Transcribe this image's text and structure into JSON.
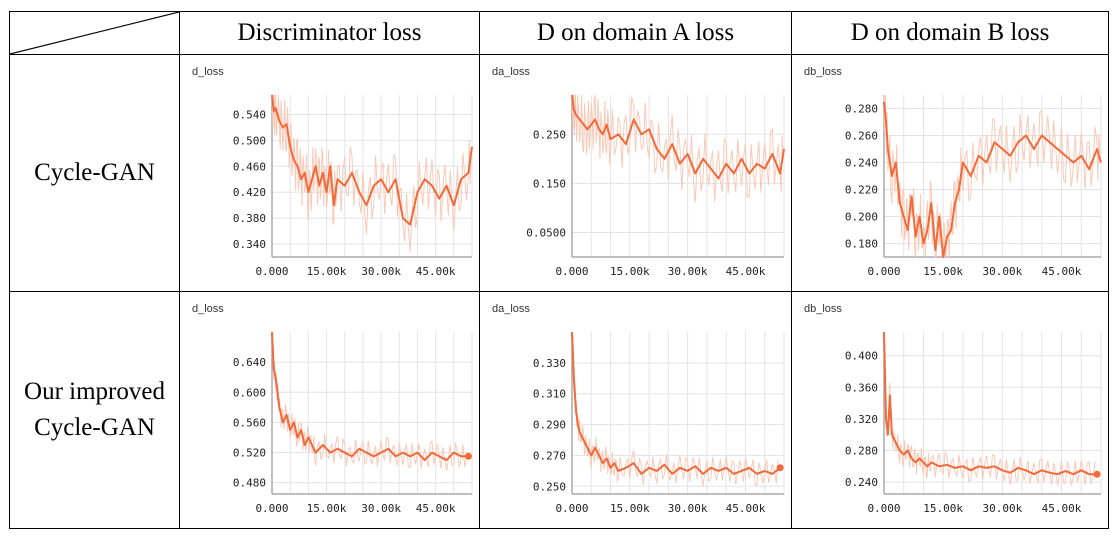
{
  "table": {
    "headers": [
      "Discriminator loss",
      "D on domain A loss",
      "D on domain B loss"
    ],
    "rows": [
      {
        "label_lines": [
          "Cycle-GAN"
        ]
      },
      {
        "label_lines": [
          "Our improved",
          "Cycle-GAN"
        ]
      }
    ]
  },
  "colors": {
    "smoothed": "#f2693a",
    "raw": "#f9c9b6",
    "grid": "#e3e3e3",
    "axis": "#aaaaaa"
  },
  "chart_data": [
    {
      "type": "line",
      "title": "d_loss",
      "x_ticks": [
        "0.000",
        "15.00k",
        "30.00k",
        "45.00k"
      ],
      "y_ticks": [
        "0.540",
        "0.500",
        "0.460",
        "0.420",
        "0.380",
        "0.340"
      ],
      "xlim": [
        0,
        55000
      ],
      "ylim": [
        0.32,
        0.57
      ],
      "grid": true,
      "series": [
        {
          "x": [
            0,
            500,
            1000,
            2000,
            3000,
            4000,
            5000,
            6000,
            7000,
            8000,
            9000,
            10000,
            11000,
            12000,
            13000,
            14000,
            15000,
            16000,
            17000,
            18000,
            20000,
            22000,
            24000,
            26000,
            28000,
            30000,
            32000,
            34000,
            36000,
            38000,
            40000,
            42000,
            44000,
            46000,
            48000,
            50000,
            52000,
            54000,
            55000
          ],
          "y": [
            0.57,
            0.545,
            0.55,
            0.53,
            0.52,
            0.525,
            0.49,
            0.47,
            0.46,
            0.44,
            0.45,
            0.42,
            0.44,
            0.46,
            0.43,
            0.45,
            0.42,
            0.46,
            0.4,
            0.44,
            0.43,
            0.45,
            0.42,
            0.4,
            0.43,
            0.44,
            0.42,
            0.44,
            0.38,
            0.37,
            0.42,
            0.44,
            0.43,
            0.41,
            0.43,
            0.4,
            0.44,
            0.45,
            0.49
          ]
        }
      ]
    },
    {
      "type": "line",
      "title": "da_loss",
      "x_ticks": [
        "0.000",
        "15.00k",
        "30.00k",
        "45.00k"
      ],
      "y_ticks": [
        "0.250",
        "0.150",
        "0.0500"
      ],
      "xlim": [
        0,
        55000
      ],
      "ylim": [
        0.0,
        0.33
      ],
      "grid": true,
      "series": [
        {
          "x": [
            0,
            500,
            1000,
            2000,
            3000,
            4000,
            5000,
            6000,
            7000,
            8000,
            9000,
            10000,
            12000,
            14000,
            16000,
            18000,
            20000,
            22000,
            24000,
            26000,
            28000,
            30000,
            32000,
            34000,
            36000,
            38000,
            40000,
            42000,
            44000,
            46000,
            48000,
            50000,
            52000,
            54000,
            55000
          ],
          "y": [
            0.33,
            0.3,
            0.29,
            0.28,
            0.27,
            0.26,
            0.27,
            0.28,
            0.26,
            0.25,
            0.27,
            0.24,
            0.25,
            0.23,
            0.28,
            0.25,
            0.26,
            0.22,
            0.2,
            0.23,
            0.19,
            0.21,
            0.17,
            0.2,
            0.18,
            0.16,
            0.19,
            0.17,
            0.2,
            0.17,
            0.19,
            0.18,
            0.21,
            0.17,
            0.22
          ]
        }
      ]
    },
    {
      "type": "line",
      "title": "db_loss",
      "x_ticks": [
        "0.000",
        "15.00k",
        "30.00k",
        "45.00k"
      ],
      "y_ticks": [
        "0.280",
        "0.260",
        "0.240",
        "0.220",
        "0.200",
        "0.180"
      ],
      "xlim": [
        0,
        55000
      ],
      "ylim": [
        0.17,
        0.29
      ],
      "grid": true,
      "series": [
        {
          "x": [
            0,
            500,
            1000,
            2000,
            3000,
            4000,
            5000,
            6000,
            7000,
            8000,
            9000,
            10000,
            11000,
            12000,
            13000,
            14000,
            15000,
            16000,
            17000,
            18000,
            19000,
            20000,
            22000,
            24000,
            26000,
            28000,
            30000,
            32000,
            34000,
            36000,
            38000,
            40000,
            42000,
            44000,
            46000,
            48000,
            50000,
            52000,
            54000,
            55000
          ],
          "y": [
            0.285,
            0.27,
            0.25,
            0.23,
            0.24,
            0.21,
            0.2,
            0.19,
            0.215,
            0.185,
            0.2,
            0.18,
            0.19,
            0.21,
            0.175,
            0.2,
            0.17,
            0.185,
            0.19,
            0.21,
            0.22,
            0.24,
            0.23,
            0.245,
            0.24,
            0.255,
            0.25,
            0.245,
            0.255,
            0.26,
            0.25,
            0.26,
            0.255,
            0.25,
            0.245,
            0.24,
            0.245,
            0.235,
            0.25,
            0.24
          ]
        }
      ]
    },
    {
      "type": "line",
      "title": "d_loss",
      "x_ticks": [
        "0.000",
        "15.00k",
        "30.00k",
        "45.00k"
      ],
      "y_ticks": [
        "0.640",
        "0.600",
        "0.560",
        "0.520",
        "0.480"
      ],
      "xlim": [
        0,
        55000
      ],
      "ylim": [
        0.465,
        0.68
      ],
      "grid": true,
      "series": [
        {
          "x": [
            0,
            500,
            1000,
            1500,
            2000,
            3000,
            4000,
            5000,
            6000,
            7000,
            8000,
            9000,
            10000,
            11000,
            12000,
            14000,
            16000,
            18000,
            20000,
            22000,
            24000,
            26000,
            28000,
            30000,
            32000,
            34000,
            36000,
            38000,
            40000,
            42000,
            44000,
            46000,
            48000,
            50000,
            52000,
            54000
          ],
          "y": [
            0.68,
            0.63,
            0.62,
            0.6,
            0.58,
            0.56,
            0.57,
            0.55,
            0.56,
            0.54,
            0.55,
            0.53,
            0.54,
            0.53,
            0.52,
            0.53,
            0.52,
            0.525,
            0.52,
            0.515,
            0.525,
            0.52,
            0.515,
            0.52,
            0.525,
            0.515,
            0.52,
            0.515,
            0.52,
            0.51,
            0.52,
            0.515,
            0.51,
            0.52,
            0.515,
            0.515
          ]
        }
      ]
    },
    {
      "type": "line",
      "title": "da_loss",
      "x_ticks": [
        "0.000",
        "15.00k",
        "30.00k",
        "45.00k"
      ],
      "y_ticks": [
        "0.330",
        "0.310",
        "0.290",
        "0.270",
        "0.250"
      ],
      "xlim": [
        0,
        55000
      ],
      "ylim": [
        0.245,
        0.35
      ],
      "grid": true,
      "series": [
        {
          "x": [
            0,
            500,
            1000,
            1500,
            2000,
            3000,
            4000,
            5000,
            6000,
            7000,
            8000,
            9000,
            10000,
            11000,
            12000,
            14000,
            16000,
            18000,
            20000,
            22000,
            24000,
            26000,
            28000,
            30000,
            32000,
            34000,
            36000,
            38000,
            40000,
            42000,
            44000,
            46000,
            48000,
            50000,
            52000,
            54000
          ],
          "y": [
            0.35,
            0.32,
            0.3,
            0.29,
            0.285,
            0.28,
            0.275,
            0.27,
            0.275,
            0.27,
            0.265,
            0.268,
            0.262,
            0.265,
            0.26,
            0.262,
            0.265,
            0.258,
            0.262,
            0.26,
            0.264,
            0.258,
            0.262,
            0.26,
            0.263,
            0.258,
            0.262,
            0.26,
            0.262,
            0.258,
            0.26,
            0.262,
            0.258,
            0.26,
            0.258,
            0.262
          ]
        }
      ]
    },
    {
      "type": "line",
      "title": "db_loss",
      "x_ticks": [
        "0.000",
        "15.00k",
        "30.00k",
        "45.00k"
      ],
      "y_ticks": [
        "0.400",
        "0.360",
        "0.320",
        "0.280",
        "0.240"
      ],
      "xlim": [
        0,
        55000
      ],
      "ylim": [
        0.225,
        0.43
      ],
      "grid": true,
      "series": [
        {
          "x": [
            0,
            500,
            1000,
            1500,
            2000,
            3000,
            4000,
            5000,
            6000,
            7000,
            8000,
            9000,
            10000,
            11000,
            12000,
            14000,
            16000,
            18000,
            20000,
            22000,
            24000,
            26000,
            28000,
            30000,
            32000,
            34000,
            36000,
            38000,
            40000,
            42000,
            44000,
            46000,
            48000,
            50000,
            52000,
            54000
          ],
          "y": [
            0.43,
            0.32,
            0.3,
            0.35,
            0.3,
            0.29,
            0.28,
            0.275,
            0.28,
            0.27,
            0.265,
            0.27,
            0.265,
            0.26,
            0.265,
            0.26,
            0.262,
            0.258,
            0.26,
            0.255,
            0.26,
            0.258,
            0.26,
            0.255,
            0.252,
            0.258,
            0.255,
            0.25,
            0.255,
            0.252,
            0.25,
            0.254,
            0.25,
            0.255,
            0.25,
            0.25
          ]
        }
      ]
    }
  ]
}
